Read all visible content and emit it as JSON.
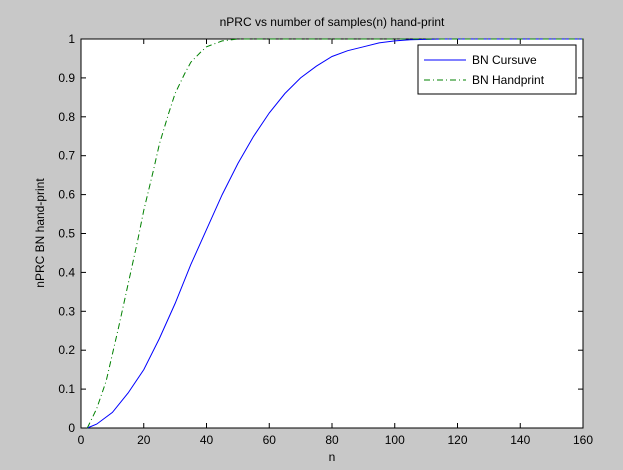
{
  "chart_data": {
    "type": "line",
    "title": "nPRC vs number of samples(n) hand-print",
    "xlabel": "n",
    "ylabel": "nPRC BN hand-print",
    "xlim": [
      0,
      160
    ],
    "ylim": [
      0,
      1
    ],
    "xticks": [
      0,
      20,
      40,
      60,
      80,
      100,
      120,
      140,
      160
    ],
    "yticks": [
      0,
      0.1,
      0.2,
      0.3,
      0.4,
      0.5,
      0.6,
      0.7,
      0.8,
      0.9,
      1
    ],
    "grid": false,
    "legend_position": "top-right",
    "series": [
      {
        "name": "BN Cursuve",
        "color": "#0000ff",
        "style": "solid",
        "x": [
          2,
          5,
          10,
          15,
          20,
          25,
          30,
          35,
          40,
          45,
          50,
          55,
          60,
          65,
          70,
          75,
          80,
          85,
          90,
          95,
          100,
          105,
          110,
          115,
          120,
          160
        ],
        "y": [
          0.0,
          0.01,
          0.04,
          0.09,
          0.15,
          0.23,
          0.32,
          0.42,
          0.51,
          0.6,
          0.68,
          0.75,
          0.81,
          0.86,
          0.9,
          0.93,
          0.955,
          0.97,
          0.98,
          0.99,
          0.995,
          0.998,
          0.999,
          1.0,
          1.0,
          1.0
        ]
      },
      {
        "name": "BN Handprint",
        "color": "#008000",
        "style": "dashdot",
        "x": [
          2,
          5,
          8,
          10,
          12,
          15,
          18,
          20,
          23,
          25,
          28,
          30,
          33,
          35,
          38,
          40,
          45,
          50,
          55,
          60,
          160
        ],
        "y": [
          0.0,
          0.05,
          0.12,
          0.19,
          0.26,
          0.37,
          0.48,
          0.56,
          0.66,
          0.73,
          0.81,
          0.86,
          0.91,
          0.94,
          0.965,
          0.98,
          0.995,
          1.0,
          1.0,
          1.0,
          1.0
        ]
      }
    ]
  }
}
